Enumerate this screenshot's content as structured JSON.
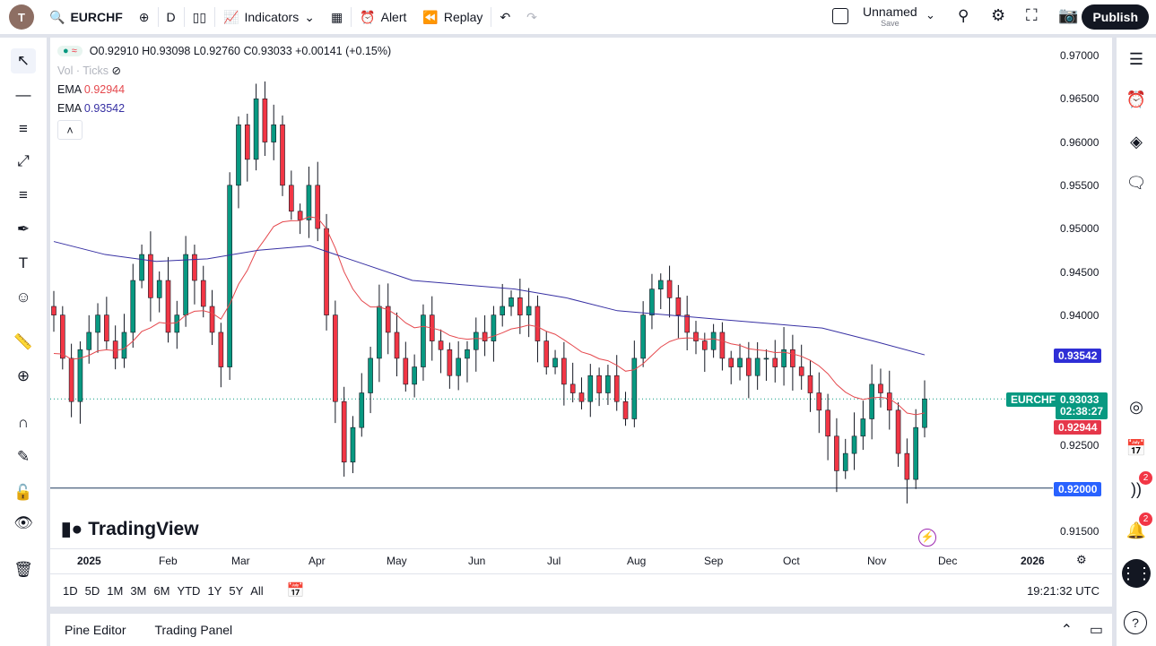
{
  "topbar": {
    "avatar": "T",
    "symbol": "EURCHF",
    "interval": "D",
    "indicators": "Indicators",
    "alert": "Alert",
    "replay": "Replay",
    "layout_name": "Unnamed",
    "layout_save": "Save",
    "publish": "Publish"
  },
  "legend": {
    "ohlc": "O0.92910 H0.93098 L0.92760 C0.93033 +0.00141 (+0.15%)",
    "vol": "Vol · Ticks",
    "ema1_label": "EMA",
    "ema1_value": "0.92944",
    "ema2_label": "EMA",
    "ema2_value": "0.93542"
  },
  "price_tags": {
    "ema_slow": "0.93542",
    "symbol": "EURCHF",
    "last": "0.93033",
    "countdown": "02:38:27",
    "ema_fast": "0.92944",
    "hline": "0.92000"
  },
  "y_ticks": [
    "0.97000",
    "0.96500",
    "0.96000",
    "0.95500",
    "0.95000",
    "0.94500",
    "0.94000",
    "0.92500",
    "0.91500"
  ],
  "x_ticks": [
    "2025",
    "Feb",
    "Mar",
    "Apr",
    "May",
    "Jun",
    "Jul",
    "Aug",
    "Sep",
    "Oct",
    "Nov",
    "Dec",
    "2026"
  ],
  "watermark": "TradingView",
  "range_buttons": [
    "1D",
    "5D",
    "1M",
    "3M",
    "6M",
    "YTD",
    "1Y",
    "5Y",
    "All"
  ],
  "clock": "19:21:32 UTC",
  "bottom_tabs": [
    "Pine Editor",
    "Trading Panel"
  ],
  "badges": {
    "news": "2",
    "alerts": "2"
  },
  "colors": {
    "up": "#089981",
    "down": "#f23645",
    "ema_fast": "#e5484d",
    "ema_slow": "#3730a3",
    "hline": "#2962ff"
  },
  "chart_data": {
    "type": "candlestick",
    "symbol": "EURCHF",
    "interval": "D",
    "ylim": [
      0.915,
      0.97
    ],
    "horizontal_line": 0.92,
    "closes": [
      0.94,
      0.935,
      0.93,
      0.936,
      0.938,
      0.94,
      0.937,
      0.935,
      0.938,
      0.944,
      0.947,
      0.942,
      0.944,
      0.938,
      0.94,
      0.947,
      0.944,
      0.941,
      0.938,
      0.934,
      0.955,
      0.962,
      0.958,
      0.965,
      0.96,
      0.962,
      0.955,
      0.952,
      0.951,
      0.955,
      0.95,
      0.94,
      0.93,
      0.923,
      0.927,
      0.931,
      0.935,
      0.941,
      0.938,
      0.935,
      0.932,
      0.934,
      0.94,
      0.937,
      0.936,
      0.933,
      0.935,
      0.936,
      0.938,
      0.937,
      0.94,
      0.941,
      0.942,
      0.94,
      0.941,
      0.937,
      0.934,
      0.935,
      0.932,
      0.931,
      0.93,
      0.933,
      0.931,
      0.933,
      0.93,
      0.928,
      0.935,
      0.94,
      0.943,
      0.944,
      0.942,
      0.94,
      0.938,
      0.937,
      0.936,
      0.938,
      0.935,
      0.934,
      0.935,
      0.933,
      0.935,
      0.935,
      0.934,
      0.936,
      0.934,
      0.933,
      0.931,
      0.929,
      0.926,
      0.922,
      0.924,
      0.926,
      0.928,
      0.932,
      0.931,
      0.929,
      0.924,
      0.921,
      0.927,
      0.9303
    ],
    "ema_slow": [
      0.9485,
      0.947,
      0.9462,
      0.9465,
      0.9475,
      0.948,
      0.946,
      0.944,
      0.9435,
      0.943,
      0.942,
      0.9405,
      0.94,
      0.9395,
      0.939,
      0.9385,
      0.937,
      0.9354
    ]
  }
}
